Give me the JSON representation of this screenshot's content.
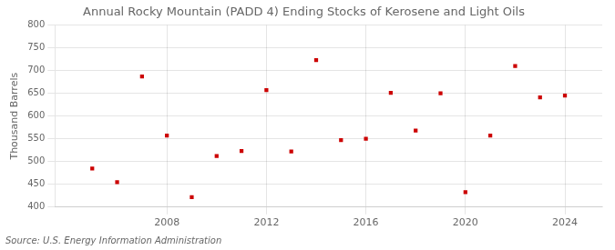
{
  "chart_data": {
    "type": "scatter",
    "title": "Annual Rocky Mountain (PADD 4) Ending Stocks of Kerosene and Light Oils",
    "ylabel": "Thousand Barrels",
    "annotation": "Source: U.S. Energy Information Administration",
    "x": [
      2005,
      2006,
      2007,
      2008,
      2009,
      2010,
      2011,
      2012,
      2013,
      2014,
      2015,
      2016,
      2017,
      2018,
      2019,
      2020,
      2021,
      2022,
      2023,
      2024
    ],
    "values": [
      485,
      455,
      687,
      557,
      422,
      512,
      523,
      657,
      522,
      723,
      547,
      550,
      651,
      568,
      650,
      433,
      557,
      710,
      641,
      645
    ],
    "color": "#cc0000",
    "marker": "square",
    "xlim": [
      2003.5,
      2025.5
    ],
    "xticks": [
      2008,
      2012,
      2016,
      2020,
      2024
    ],
    "ylim": [
      400,
      800
    ],
    "yticks": [
      400,
      450,
      500,
      550,
      600,
      650,
      700,
      750,
      800
    ],
    "grid": true
  }
}
